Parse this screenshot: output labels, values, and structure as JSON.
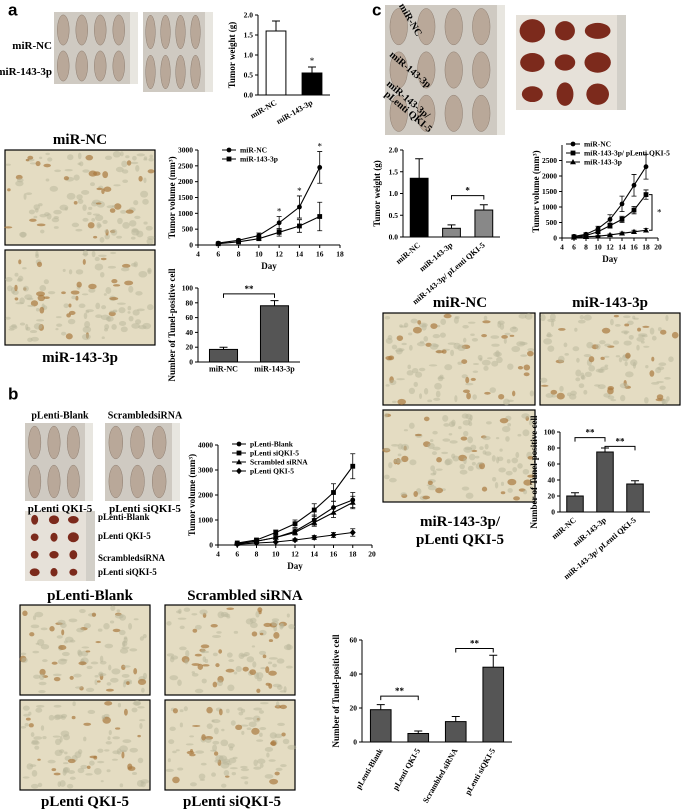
{
  "panel_labels": [
    "a",
    "b",
    "c"
  ],
  "photo_labels": [
    "miR-NC",
    "miR-143-3p",
    "miR-NC",
    "miR-143-3p",
    "pLenti-Blank",
    "ScrambledsiRNA",
    "pLenti QKI-5",
    "pLenti siQKI-5",
    "pLenti-Blank",
    "pLenti QKI-5",
    "ScrambledsiRNA",
    "pLenti siQKI-5",
    "pLenti-Blank",
    "Scrambled siRNA",
    "pLenti QKI-5",
    "pLenti siQKI-5",
    "miR-NC",
    "miR-143-3p",
    "miR-143-3p/",
    "pLenti QKI-5",
    "miR-NC",
    "miR-143-3p",
    "miR-143-3p/",
    "pLenti QKI-5"
  ],
  "chart_data": [
    {
      "type": "bar",
      "ylabel": "Tumor weight (g)",
      "categories": [
        "miR-NC",
        "miR-143-3p"
      ],
      "values": [
        1.6,
        0.55
      ],
      "errors": [
        0.25,
        0.15
      ],
      "colors": [
        "#ffffff",
        "#000000"
      ],
      "ylim": [
        0,
        2
      ],
      "yticks": [
        {
          "value": 0,
          "label": "0.0"
        },
        0.5,
        {
          "value": 1,
          "label": "1.0"
        },
        1.5,
        {
          "value": 2,
          "label": "2.0"
        }
      ],
      "annotations": [
        "*"
      ]
    },
    {
      "type": "line",
      "xlabel": "Day",
      "ylabel": "Tumor volume (mm³)",
      "x": [
        6,
        8,
        10,
        12,
        14,
        16
      ],
      "xlim": [
        4,
        18
      ],
      "xticks": [
        4,
        6,
        8,
        10,
        12,
        14,
        16,
        18
      ],
      "ylim": [
        0,
        3000
      ],
      "yticks": [
        0,
        500,
        1000,
        1500,
        2000,
        2500,
        3000
      ],
      "series": [
        {
          "name": "miR-NC",
          "color": "#000000",
          "marker": "circle",
          "values": [
            60,
            150,
            300,
            700,
            1200,
            2450
          ],
          "errors": [
            20,
            40,
            80,
            200,
            350,
            500
          ]
        },
        {
          "name": "miR-143-3p",
          "color": "#000000",
          "marker": "square",
          "values": [
            40,
            100,
            200,
            400,
            600,
            900
          ],
          "errors": [
            10,
            30,
            60,
            120,
            200,
            450
          ]
        }
      ],
      "annotations": [
        "*",
        "*",
        "*"
      ]
    },
    {
      "type": "bar",
      "ylabel": "Number of Tunel-positive cell",
      "categories": [
        "miR-NC",
        "miR-143-3p"
      ],
      "values": [
        17,
        76
      ],
      "errors": [
        3,
        7
      ],
      "colors": [
        "#555555",
        "#555555"
      ],
      "ylim": [
        0,
        100
      ],
      "yticks": [
        0,
        20,
        40,
        60,
        80,
        100
      ],
      "annotations": [
        "**"
      ]
    },
    {
      "type": "line",
      "xlabel": "Day",
      "ylabel": "Tumor volume (mm³)",
      "x": [
        6,
        8,
        10,
        12,
        14,
        16,
        18
      ],
      "xlim": [
        4,
        20
      ],
      "xticks": [
        4,
        6,
        8,
        10,
        12,
        14,
        16,
        18,
        20
      ],
      "ylim": [
        0,
        4000
      ],
      "yticks": [
        0,
        1000,
        2000,
        3000,
        4000
      ],
      "series": [
        {
          "name": "pLenti-Blank",
          "color": "#000000",
          "marker": "circle",
          "values": [
            50,
            150,
            300,
            550,
            1000,
            1500,
            1800
          ],
          "errors": [
            20,
            40,
            60,
            100,
            200,
            250,
            300
          ]
        },
        {
          "name": "pLenti siQKI-5",
          "color": "#000000",
          "marker": "square",
          "values": [
            80,
            200,
            500,
            850,
            1400,
            2100,
            3150
          ],
          "errors": [
            20,
            50,
            100,
            150,
            250,
            350,
            500
          ]
        },
        {
          "name": "Scrambled siRNA",
          "color": "#000000",
          "marker": "triangle",
          "values": [
            60,
            150,
            300,
            500,
            900,
            1300,
            1700
          ],
          "errors": [
            20,
            40,
            60,
            100,
            150,
            200,
            250
          ]
        },
        {
          "name": "pLenti QKI-5",
          "color": "#000000",
          "marker": "diamond",
          "values": [
            30,
            80,
            120,
            200,
            300,
            400,
            500
          ],
          "errors": [
            10,
            20,
            30,
            50,
            80,
            100,
            150
          ]
        }
      ],
      "annotations": []
    },
    {
      "type": "bar",
      "ylabel": "Number of Tunel-positive cell",
      "categories": [
        "pLenti-Blank",
        "pLenti QKI-5",
        "Scrambled siRNA",
        "pLenti siQKI-5"
      ],
      "values": [
        19,
        5,
        12,
        44
      ],
      "errors": [
        3,
        1.5,
        3,
        7
      ],
      "colors": [
        "#555555",
        "#555555",
        "#555555",
        "#555555"
      ],
      "ylim": [
        0,
        60
      ],
      "yticks": [
        0,
        20,
        40,
        60
      ],
      "annotations": [
        "**",
        "**"
      ]
    },
    {
      "type": "bar",
      "ylabel": "Tumor weight (g)",
      "categories": [
        "miR-NC",
        "miR-143-3p",
        "miR-143-3p/ pLenti QKI-5"
      ],
      "values": [
        1.35,
        0.2,
        0.62
      ],
      "errors": [
        0.45,
        0.08,
        0.12
      ],
      "colors": [
        "#000000",
        "#888888",
        "#888888"
      ],
      "ylim": [
        0,
        2
      ],
      "yticks": [
        {
          "value": 0,
          "label": "0.0"
        },
        0.5,
        {
          "value": 1,
          "label": "1.0"
        },
        1.5,
        {
          "value": 2,
          "label": "2.0"
        }
      ],
      "annotations": [
        "*"
      ]
    },
    {
      "type": "line",
      "xlabel": "Day",
      "ylabel": "Tumor volume (mm³)",
      "x": [
        6,
        8,
        10,
        12,
        14,
        16,
        18
      ],
      "xlim": [
        4,
        20
      ],
      "xticks": [
        4,
        6,
        8,
        10,
        12,
        14,
        16,
        18,
        20
      ],
      "ylim": [
        0,
        3000
      ],
      "yticks": [
        0,
        500,
        1000,
        1500,
        2000,
        2500
      ],
      "series": [
        {
          "name": "miR-NC",
          "color": "#000000",
          "marker": "circle",
          "values": [
            50,
            120,
            300,
            600,
            1100,
            1700,
            2300
          ],
          "errors": [
            20,
            50,
            80,
            150,
            250,
            350,
            400
          ]
        },
        {
          "name": "miR-143-3p/ pLenti QKI-5",
          "color": "#000000",
          "marker": "square",
          "values": [
            40,
            80,
            200,
            400,
            600,
            900,
            1400
          ],
          "errors": [
            10,
            30,
            50,
            80,
            100,
            120,
            150
          ]
        },
        {
          "name": "miR-143-3p",
          "color": "#000000",
          "marker": "triangle",
          "values": [
            20,
            40,
            60,
            100,
            150,
            200,
            250
          ],
          "errors": [
            5,
            10,
            20,
            30,
            40,
            50,
            60
          ]
        }
      ],
      "annotations": [
        "*"
      ]
    },
    {
      "type": "bar",
      "ylabel": "Number of Tunel-positive cell",
      "categories": [
        "miR-NC",
        "miR-143-3p",
        "miR-143-3p/ pLenti QKI-5"
      ],
      "values": [
        20,
        75,
        35
      ],
      "errors": [
        4,
        5,
        4
      ],
      "colors": [
        "#555555",
        "#555555",
        "#555555"
      ],
      "ylim": [
        0,
        100
      ],
      "yticks": [
        0,
        20,
        40,
        60,
        80,
        100
      ],
      "annotations": [
        "**",
        "**"
      ]
    }
  ]
}
